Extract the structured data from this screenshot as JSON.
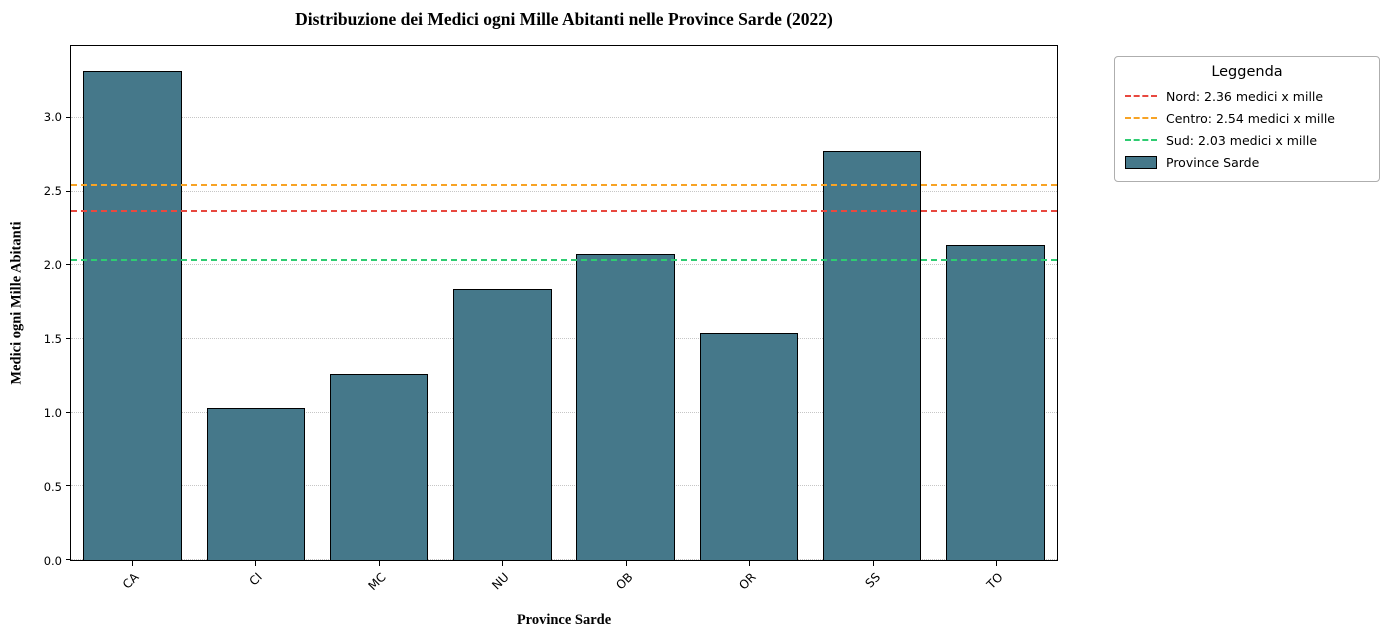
{
  "chart_data": {
    "type": "bar",
    "title": "Distribuzione dei Medici ogni Mille Abitanti nelle Province Sarde (2022)",
    "xlabel": "Province Sarde",
    "ylabel": "Medici ogni Mille Abitanti",
    "categories": [
      "CA",
      "CI",
      "MC",
      "NU",
      "OB",
      "OR",
      "SS",
      "TO"
    ],
    "values": [
      3.32,
      1.03,
      1.26,
      1.84,
      2.08,
      1.54,
      2.78,
      2.14
    ],
    "bar_color": "#45788a",
    "bar_edge_color": "#000000",
    "ylim": [
      0,
      3.49
    ],
    "yticks": [
      0,
      0.5,
      1,
      1.5,
      2,
      2.5,
      3
    ],
    "grid": "horizontal-dotted",
    "reference_lines": [
      {
        "name": "nord",
        "value": 2.36,
        "color": "#e8483f",
        "style": "dashed",
        "label": "Nord: 2.36 medici x mille"
      },
      {
        "name": "centro",
        "value": 2.54,
        "color": "#f7a325",
        "style": "dashed",
        "label": "Centro: 2.54 medici x mille"
      },
      {
        "name": "sud",
        "value": 2.03,
        "color": "#2ecc71",
        "style": "dashed",
        "label": "Sud: 2.03 medici x mille"
      }
    ],
    "legend": {
      "title": "Leggenda",
      "position": "outside-top-right",
      "entries": [
        {
          "type": "dashed-line",
          "color": "#e8483f",
          "label": "Nord: 2.36 medici x mille"
        },
        {
          "type": "dashed-line",
          "color": "#f7a325",
          "label": "Centro: 2.54 medici x mille"
        },
        {
          "type": "dashed-line",
          "color": "#2ecc71",
          "label": "Sud: 2.03 medici x mille"
        },
        {
          "type": "patch",
          "color": "#45788a",
          "label": "Province Sarde"
        }
      ]
    }
  }
}
